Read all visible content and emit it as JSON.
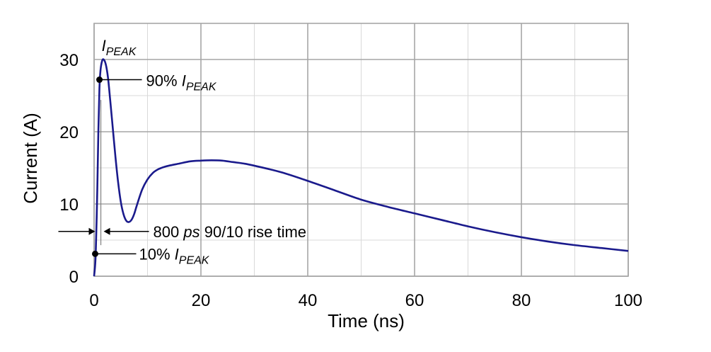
{
  "chart_data": {
    "type": "line",
    "title": "",
    "xlabel": "Time (ns)",
    "ylabel": "Current (A)",
    "xlim": [
      0,
      100
    ],
    "ylim": [
      0,
      35
    ],
    "x_major_ticks": [
      0,
      20,
      40,
      60,
      80,
      100
    ],
    "x_minor_ticks": [
      10,
      30,
      50,
      70,
      90
    ],
    "y_major_ticks": [
      0,
      10,
      20,
      30
    ],
    "y_minor_ticks": [
      5,
      15,
      25,
      35
    ],
    "grid": true,
    "series": [
      {
        "name": "Current",
        "color": "#1a1a8c",
        "x": [
          0,
          0.3,
          0.6,
          0.8,
          1.0,
          1.2,
          1.5,
          1.8,
          2.2,
          2.6,
          3.0,
          3.5,
          4.0,
          4.5,
          5.0,
          5.5,
          6.0,
          6.5,
          7.0,
          7.5,
          8.0,
          9.0,
          10.0,
          11.0,
          12.0,
          13.0,
          14.0,
          16.0,
          18.0,
          20.0,
          22.0,
          24.0,
          26.0,
          28.0,
          30.0,
          35.0,
          40.0,
          45.0,
          50.0,
          55.0,
          60.0,
          65.0,
          70.0,
          75.0,
          80.0,
          85.0,
          90.0,
          95.0,
          100.0
        ],
        "y": [
          0,
          3,
          12,
          20,
          26,
          28.5,
          29.8,
          30,
          29.3,
          27.5,
          24.5,
          20.5,
          16.5,
          13,
          10.3,
          8.6,
          7.7,
          7.5,
          7.8,
          8.6,
          9.8,
          12,
          13.4,
          14.3,
          14.8,
          15.1,
          15.3,
          15.6,
          15.9,
          16.0,
          16.05,
          16.0,
          15.8,
          15.6,
          15.3,
          14.4,
          13.2,
          11.9,
          10.6,
          9.6,
          8.7,
          7.8,
          6.9,
          6.1,
          5.4,
          4.8,
          4.3,
          3.9,
          3.5
        ]
      }
    ],
    "annotations": {
      "peak": {
        "label": "I",
        "sub": "PEAK",
        "x": 1.8,
        "y": 30
      },
      "p90": {
        "prefix": "90% ",
        "label": "I",
        "sub": "PEAK",
        "x": 1.0,
        "y": 27.2
      },
      "p10": {
        "prefix": "10% ",
        "label": "I",
        "sub": "PEAK",
        "x": 0.2,
        "y": 3.1
      },
      "rise": {
        "num": "800 ",
        "unit": "ps",
        "rest": " 90/10 rise time",
        "y": 6.2,
        "x_left": 0.2,
        "x_right": 1.0
      }
    }
  }
}
